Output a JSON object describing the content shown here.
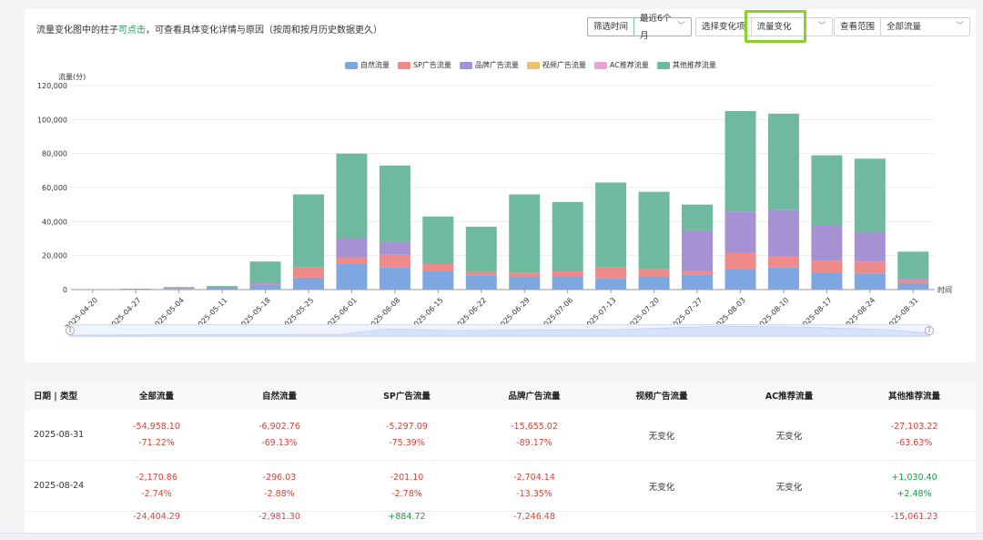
{
  "header": {
    "hint_prefix": "流量变化图中的柱子",
    "hint_link": "可点击",
    "hint_suffix": "，可查看具体变化详情与原因（按周和按月历史数据更久）",
    "filters": [
      {
        "label": "筛选时间",
        "value": "最近6个月"
      },
      {
        "label": "选择变化项",
        "value": "流量变化"
      },
      {
        "label": "查看范围",
        "value": "全部流量"
      }
    ]
  },
  "colors": {
    "natural": "#7ea6e0",
    "sp": "#ef8a8a",
    "brand": "#a692d2",
    "video": "#e8c36a",
    "ac": "#e6a3d6",
    "other": "#6fba9e"
  },
  "chart_data": {
    "type": "bar",
    "stacked": true,
    "ylabel": "流量(分)",
    "xlabel": "时间",
    "ylim": [
      0,
      120000
    ],
    "yticks": [
      "0",
      "20,000",
      "40,000",
      "60,000",
      "80,000",
      "100,000",
      "120,000"
    ],
    "categories": [
      "2025-04-20",
      "2025-04-27",
      "2025-05-04",
      "2025-05-11",
      "2025-05-18",
      "2025-05-25",
      "2025-06-01",
      "2025-06-08",
      "2025-06-15",
      "2025-06-22",
      "2025-06-29",
      "2025-07-06",
      "2025-07-13",
      "2025-07-20",
      "2025-07-27",
      "2025-08-03",
      "2025-08-10",
      "2025-08-17",
      "2025-08-24",
      "2025-08-31"
    ],
    "series": [
      {
        "name": "自然流量",
        "key": "natural",
        "values": [
          0,
          200,
          400,
          800,
          3000,
          7000,
          15000,
          13000,
          11000,
          8500,
          7500,
          7500,
          6500,
          7500,
          9000,
          12000,
          13000,
          10000,
          9500,
          3500
        ]
      },
      {
        "name": "SP广告流量",
        "key": "sp",
        "values": [
          0,
          0,
          0,
          0,
          500,
          6000,
          4000,
          7500,
          4000,
          2000,
          2500,
          3500,
          6500,
          4500,
          2000,
          9500,
          6500,
          7000,
          7000,
          1800
        ]
      },
      {
        "name": "品牌广告流量",
        "key": "brand",
        "values": [
          0,
          0,
          500,
          500,
          500,
          0,
          11000,
          7500,
          0,
          0,
          0,
          0,
          0,
          0,
          24000,
          24500,
          27500,
          20500,
          17500,
          1000
        ]
      },
      {
        "name": "视频广告流量",
        "key": "video",
        "values": [
          0,
          0,
          0,
          0,
          0,
          0,
          0,
          0,
          0,
          0,
          0,
          0,
          0,
          0,
          0,
          0,
          0,
          0,
          0,
          0
        ]
      },
      {
        "name": "AC推荐流量",
        "key": "ac",
        "values": [
          0,
          0,
          0,
          0,
          0,
          0,
          0,
          0,
          0,
          0,
          0,
          0,
          0,
          0,
          0,
          0,
          0,
          0,
          0,
          0
        ]
      },
      {
        "name": "其他推荐流量",
        "key": "other",
        "values": [
          0,
          300,
          600,
          800,
          12500,
          43000,
          50000,
          45000,
          28000,
          26500,
          46000,
          40500,
          50000,
          45500,
          15000,
          59000,
          56500,
          41500,
          43000,
          16000
        ]
      }
    ]
  },
  "table": {
    "headers": [
      "日期 | 类型",
      "全部流量",
      "自然流量",
      "SP广告流量",
      "品牌广告流量",
      "视频广告流量",
      "AC推荐流量",
      "其他推荐流量"
    ],
    "rows": [
      {
        "date": "2025-08-31",
        "cells": [
          {
            "a": "-54,958.10",
            "b": "-71.22%",
            "t": "neg"
          },
          {
            "a": "-6,902.76",
            "b": "-69.13%",
            "t": "neg"
          },
          {
            "a": "-5,297.09",
            "b": "-75.39%",
            "t": "neg"
          },
          {
            "a": "-15,655.02",
            "b": "-89.17%",
            "t": "neg"
          },
          {
            "a": "无变化",
            "b": "",
            "t": "nochg"
          },
          {
            "a": "无变化",
            "b": "",
            "t": "nochg"
          },
          {
            "a": "-27,103.22",
            "b": "-63.63%",
            "t": "neg"
          }
        ]
      },
      {
        "date": "2025-08-24",
        "cells": [
          {
            "a": "-2,170.86",
            "b": "-2.74%",
            "t": "neg"
          },
          {
            "a": "-296.03",
            "b": "-2.88%",
            "t": "neg"
          },
          {
            "a": "-201.10",
            "b": "-2.78%",
            "t": "neg"
          },
          {
            "a": "-2,704.14",
            "b": "-13.35%",
            "t": "neg"
          },
          {
            "a": "无变化",
            "b": "",
            "t": "nochg"
          },
          {
            "a": "无变化",
            "b": "",
            "t": "nochg"
          },
          {
            "a": "+1,030.40",
            "b": "+2.48%",
            "t": "pos"
          }
        ]
      }
    ],
    "partial_row": [
      {
        "v": "-24,404.29",
        "t": "neg"
      },
      {
        "v": "-2,981.30",
        "t": "neg"
      },
      {
        "v": "+884.72",
        "t": "pos"
      },
      {
        "v": "-7,246.48",
        "t": "neg"
      },
      {
        "v": "",
        "t": "nochg"
      },
      {
        "v": "",
        "t": "nochg"
      },
      {
        "v": "-15,061.23",
        "t": "neg"
      }
    ]
  }
}
